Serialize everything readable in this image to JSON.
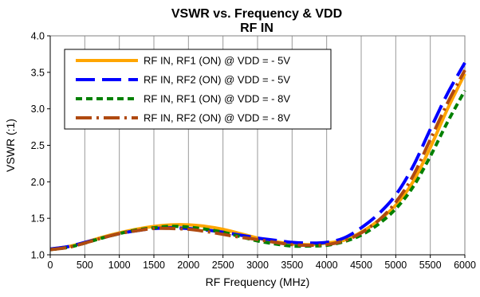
{
  "chart_data": {
    "type": "line",
    "title": "VSWR vs. Frequency & VDD",
    "subtitle": "RF IN",
    "xlabel": "RF Frequency (MHz)",
    "ylabel": "VSWR (:1)",
    "xlim": [
      0,
      6000
    ],
    "ylim": [
      1.0,
      4.0
    ],
    "xticks": [
      "0",
      "500",
      "1000",
      "1500",
      "2000",
      "2500",
      "3000",
      "3500",
      "4000",
      "4500",
      "5000",
      "5500",
      "6000"
    ],
    "yticks": [
      "1.0",
      "1.5",
      "2.0",
      "2.5",
      "3.0",
      "3.5",
      "4.0"
    ],
    "grid": "vertical",
    "legend_position": "top-left",
    "series": [
      {
        "name": "RF IN, RF1 (ON) @ VDD = - 5V",
        "color": "#FFA500",
        "style": "solid",
        "x": [
          0,
          250,
          500,
          750,
          1000,
          1250,
          1500,
          1750,
          2000,
          2250,
          2500,
          2750,
          3000,
          3250,
          3500,
          3750,
          4000,
          4250,
          4500,
          4750,
          5000,
          5250,
          5500,
          5750,
          6000
        ],
        "values": [
          1.08,
          1.11,
          1.17,
          1.24,
          1.3,
          1.35,
          1.39,
          1.41,
          1.41,
          1.39,
          1.35,
          1.29,
          1.23,
          1.18,
          1.15,
          1.14,
          1.16,
          1.2,
          1.31,
          1.47,
          1.68,
          2.0,
          2.47,
          3.0,
          3.48
        ]
      },
      {
        "name": "RF IN, RF2 (ON) @ VDD = - 5V",
        "color": "#0000FF",
        "style": "long-dash",
        "x": [
          0,
          250,
          500,
          750,
          1000,
          1250,
          1500,
          1750,
          2000,
          2250,
          2500,
          2750,
          3000,
          3250,
          3500,
          3750,
          4000,
          4250,
          4500,
          4750,
          5000,
          5250,
          5500,
          5750,
          6000
        ],
        "values": [
          1.08,
          1.11,
          1.17,
          1.23,
          1.29,
          1.33,
          1.36,
          1.37,
          1.36,
          1.34,
          1.31,
          1.27,
          1.23,
          1.2,
          1.17,
          1.16,
          1.17,
          1.23,
          1.37,
          1.56,
          1.82,
          2.21,
          2.72,
          3.21,
          3.63
        ]
      },
      {
        "name": "RF IN, RF1 (ON) @ VDD = - 8V",
        "color": "#008000",
        "style": "short-dash",
        "x": [
          0,
          250,
          500,
          750,
          1000,
          1250,
          1500,
          1750,
          2000,
          2250,
          2500,
          2750,
          3000,
          3250,
          3500,
          3750,
          4000,
          4250,
          4500,
          4750,
          5000,
          5250,
          5500,
          5750,
          6000
        ],
        "values": [
          1.07,
          1.1,
          1.16,
          1.23,
          1.29,
          1.34,
          1.37,
          1.39,
          1.38,
          1.35,
          1.31,
          1.25,
          1.19,
          1.15,
          1.12,
          1.12,
          1.13,
          1.18,
          1.27,
          1.42,
          1.63,
          1.93,
          2.35,
          2.82,
          3.25
        ]
      },
      {
        "name": "RF IN, RF2 (ON) @ VDD = - 8V",
        "color": "#B04A10",
        "style": "dash-dot",
        "x": [
          0,
          250,
          500,
          750,
          1000,
          1250,
          1500,
          1750,
          2000,
          2250,
          2500,
          2750,
          3000,
          3250,
          3500,
          3750,
          4000,
          4250,
          4500,
          4750,
          5000,
          5250,
          5500,
          5750,
          6000
        ],
        "values": [
          1.07,
          1.1,
          1.16,
          1.23,
          1.29,
          1.33,
          1.36,
          1.36,
          1.35,
          1.32,
          1.28,
          1.24,
          1.21,
          1.17,
          1.14,
          1.13,
          1.14,
          1.19,
          1.3,
          1.47,
          1.72,
          2.08,
          2.58,
          3.08,
          3.53
        ]
      }
    ]
  }
}
